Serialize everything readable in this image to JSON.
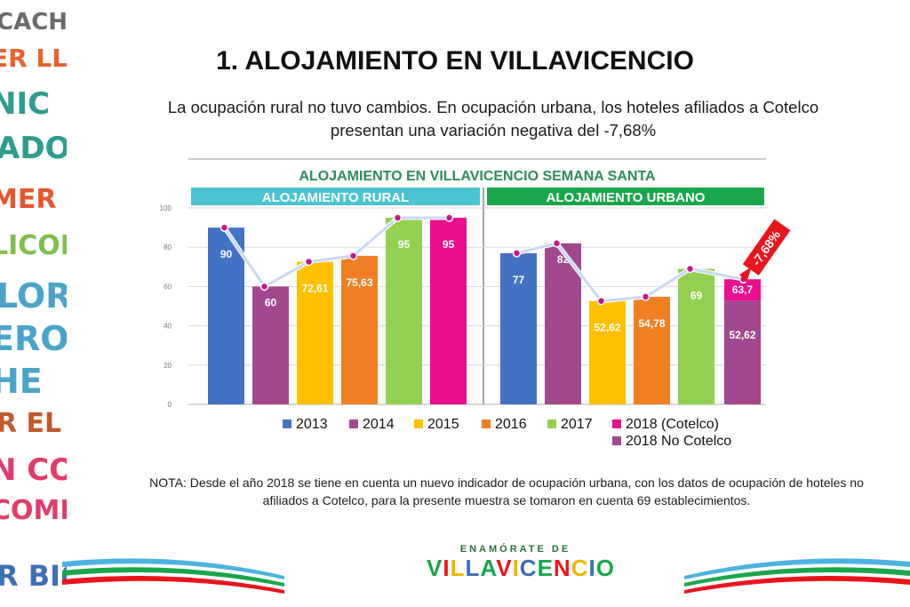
{
  "slide": {
    "title": "1. ALOJAMIENTO EN VILLAVICENCIO",
    "subtitle": "La ocupación rural no tuvo cambios. En ocupación urbana, los hoteles afiliados a Cotelco presentan una variación negativa del -7,68%",
    "note": "NOTA: Desde el año 2018 se tiene en cuenta un nuevo indicador de ocupación urbana, con los datos de ocupación de hoteles no afiliados a Cotelco, para la presente muestra se tomaron en cuenta 69 establecimientos."
  },
  "side_strip": {
    "words": [
      {
        "text": "CACHA",
        "color": "#6b6b6b"
      },
      {
        "text": "ER LLAN",
        "color": "#e8622c"
      },
      {
        "text": "NIC",
        "color": "#2e9c8e"
      },
      {
        "text": "ADORE",
        "color": "#2e9c8e"
      },
      {
        "text": "MER EL F",
        "color": "#e4572e"
      },
      {
        "text": "LICON",
        "color": "#7fbf4d"
      },
      {
        "text": "LOR",
        "color": "#4aa3c8"
      },
      {
        "text": "ERO",
        "color": "#4aa3c8"
      },
      {
        "text": "HE",
        "color": "#4aa3c8"
      },
      {
        "text": "R EL PARQ",
        "color": "#c0592b"
      },
      {
        "text": "N CON",
        "color": "#e23c6b"
      },
      {
        "text": "COMER",
        "color": "#e23c6b"
      },
      {
        "text": "R BICIC",
        "color": "#3d6fb6"
      }
    ]
  },
  "logo": {
    "top": "ENAMÓRATE DE",
    "main": "VILLAVICENCIO"
  },
  "colors": {
    "2013": "#4472c4",
    "2014": "#a1488e",
    "2015": "#ffc000",
    "2016": "#f07f24",
    "2017": "#92d050",
    "2018 (Cotelco)": "#ea0f8c",
    "2018 No Cotelco": "#a1488e",
    "rural_header": "#4bc4d2",
    "urban_header": "#1aa64b",
    "chart_title": "#2c8b5c",
    "line": "#c9d8ee",
    "marker": "#c2188e",
    "badge": "#e8151c"
  },
  "chart_data": {
    "type": "bar",
    "title": "ALOJAMIENTO EN VILLAVICENCIO SEMANA SANTA",
    "ylim": [
      0,
      100
    ],
    "yticks": [
      0,
      20,
      40,
      60,
      80,
      100
    ],
    "grid": true,
    "legend_position": "bottom",
    "legend": [
      "2013",
      "2014",
      "2015",
      "2016",
      "2017",
      "2018 (Cotelco)",
      "2018 No Cotelco"
    ],
    "panels": [
      {
        "name": "ALOJAMIENTO RURAL",
        "bars": [
          {
            "series": "2013",
            "value": 90,
            "label": "90"
          },
          {
            "series": "2014",
            "value": 60,
            "label": "60"
          },
          {
            "series": "2015",
            "value": 72.61,
            "label": "72,61"
          },
          {
            "series": "2016",
            "value": 75.63,
            "label": "75,63"
          },
          {
            "series": "2017",
            "value": 95,
            "label": "95"
          },
          {
            "series": "2018 (Cotelco)",
            "value": 95,
            "label": "95"
          }
        ]
      },
      {
        "name": "ALOJAMIENTO URBANO",
        "bars": [
          {
            "series": "2013",
            "value": 77,
            "label": "77"
          },
          {
            "series": "2014",
            "value": 82,
            "label": "82"
          },
          {
            "series": "2015",
            "value": 52.62,
            "label": "52,62"
          },
          {
            "series": "2016",
            "value": 54.78,
            "label": "54,78"
          },
          {
            "series": "2017",
            "value": 69,
            "label": "69"
          },
          {
            "series": "2018 (Cotelco)",
            "value": 63.7,
            "label": "63,7",
            "stacked_base": {
              "series": "2018 No Cotelco",
              "value": 52.62,
              "label": "52,62"
            }
          }
        ]
      }
    ],
    "annotation": "-7,68%"
  }
}
